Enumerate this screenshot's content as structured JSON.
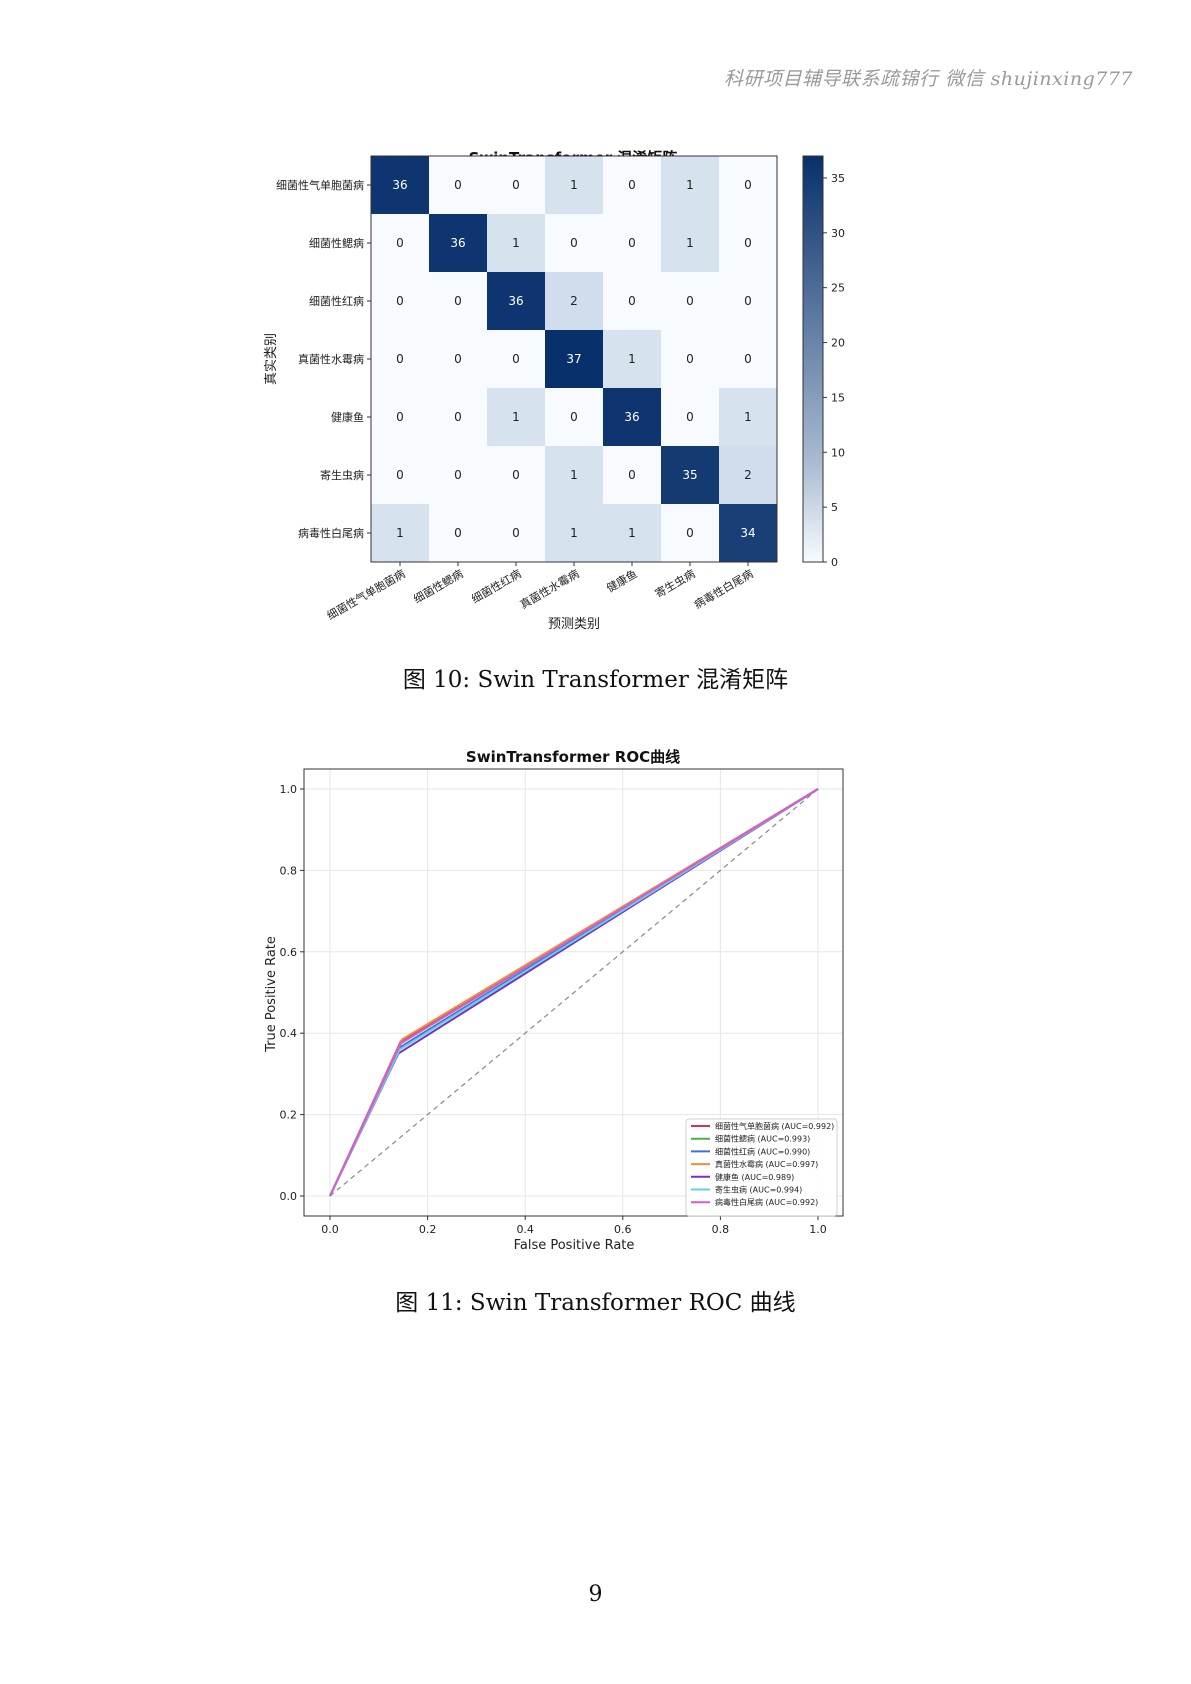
{
  "watermark": "科研项目辅导联系疏锦行 微信 shujinxing777",
  "figures": [
    {
      "caption": "图 10: Swin Transformer 混淆矩阵"
    },
    {
      "caption": "图 11: Swin Transformer ROC 曲线"
    }
  ],
  "page_number": "9",
  "chart_data": [
    {
      "type": "heatmap",
      "title": "SwinTransformer 混淆矩阵",
      "xlabel": "预测类别",
      "ylabel": "真实类别",
      "categories": [
        "细菌性气单胞菌病",
        "细菌性鳃病",
        "细菌性红病",
        "真菌性水霉病",
        "健康鱼",
        "寄生虫病",
        "病毒性白尾病"
      ],
      "matrix": [
        [
          36,
          0,
          0,
          1,
          0,
          1,
          0
        ],
        [
          0,
          36,
          1,
          0,
          0,
          1,
          0
        ],
        [
          0,
          0,
          36,
          2,
          0,
          0,
          0
        ],
        [
          0,
          0,
          0,
          37,
          1,
          0,
          0
        ],
        [
          0,
          0,
          1,
          0,
          36,
          0,
          1
        ],
        [
          0,
          0,
          0,
          1,
          0,
          35,
          2
        ],
        [
          1,
          0,
          0,
          1,
          1,
          0,
          34
        ]
      ],
      "colorbar": {
        "min": 0,
        "max": 37,
        "ticks": [
          0,
          5,
          10,
          15,
          20,
          25,
          30,
          35
        ]
      },
      "colors": {
        "low": "#f7fbff",
        "high": "#08306b"
      }
    },
    {
      "type": "line",
      "title": "SwinTransformer ROC曲线",
      "xlabel": "False Positive Rate",
      "ylabel": "True Positive Rate",
      "xlim": [
        0,
        1
      ],
      "ylim": [
        0,
        1
      ],
      "xticks": [
        "0.0",
        "0.2",
        "0.4",
        "0.6",
        "0.8",
        "1.0"
      ],
      "yticks": [
        "0.0",
        "0.2",
        "0.4",
        "0.6",
        "0.8",
        "1.0"
      ],
      "grid": true,
      "legend": "lower-right",
      "diagonal": true,
      "series": [
        {
          "name": "细菌性气单胞菌病 (AUC=0.992)",
          "color": "#d6305c",
          "x": [
            0,
            0.145,
            1
          ],
          "y": [
            0,
            0.38,
            1
          ]
        },
        {
          "name": "细菌性鳃病 (AUC=0.993)",
          "color": "#4caf50",
          "x": [
            0,
            0.145,
            1
          ],
          "y": [
            0,
            0.375,
            1
          ]
        },
        {
          "name": "细菌性红病 (AUC=0.990)",
          "color": "#3f6fd8",
          "x": [
            0,
            0.143,
            1
          ],
          "y": [
            0,
            0.365,
            1
          ]
        },
        {
          "name": "真菌性水霉病 (AUC=0.997)",
          "color": "#f28c38",
          "x": [
            0,
            0.148,
            1
          ],
          "y": [
            0,
            0.385,
            1
          ]
        },
        {
          "name": "健康鱼 (AUC=0.989)",
          "color": "#7b2fbf",
          "x": [
            0,
            0.14,
            1
          ],
          "y": [
            0,
            0.35,
            1
          ]
        },
        {
          "name": "寄生虫病 (AUC=0.994)",
          "color": "#5fd3e3",
          "x": [
            0,
            0.143,
            1
          ],
          "y": [
            0,
            0.36,
            1
          ]
        },
        {
          "name": "病毒性白尾病 (AUC=0.992)",
          "color": "#d45bd6",
          "x": [
            0,
            0.145,
            1
          ],
          "y": [
            0,
            0.375,
            1
          ]
        }
      ]
    }
  ]
}
